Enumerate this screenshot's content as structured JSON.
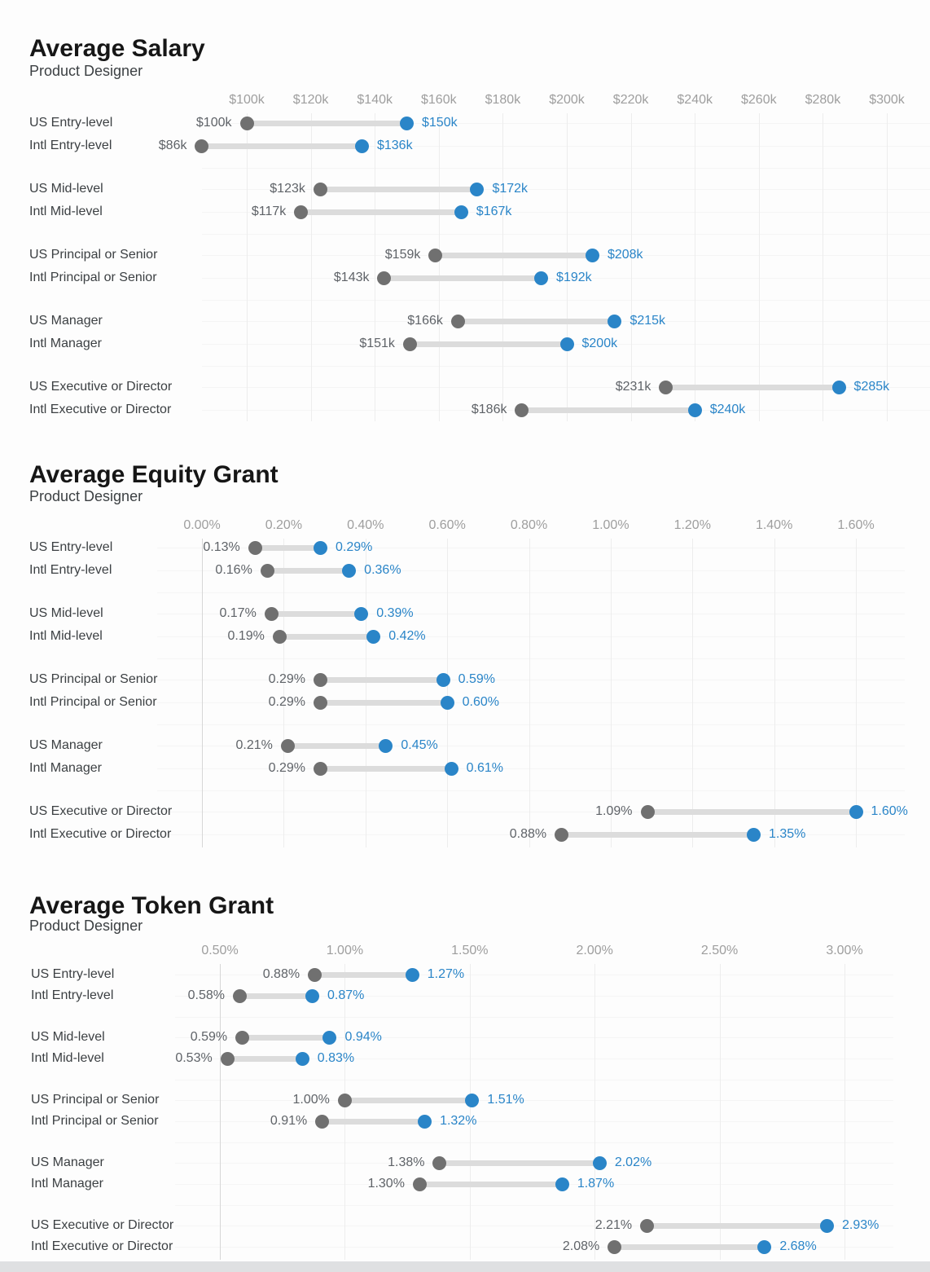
{
  "report": {
    "role": "Product Designer"
  },
  "colors": {
    "accent_blue": "#2a85c8",
    "dot_gray": "#707070",
    "bar_gray": "#dcdcdc",
    "axis_text": "#9e9e9e",
    "label_text": "#3c4043",
    "min_value_text": "#5f6368",
    "title_text": "#161616"
  },
  "chart_data": [
    {
      "type": "dumbbell",
      "title": "Average Salary",
      "subtitle": "Product Designer",
      "xlabel": "",
      "ylabel": "",
      "legend": "none",
      "grid": "on",
      "axis": {
        "ticks": [
          "$100k",
          "$120k",
          "$140k",
          "$160k",
          "$180k",
          "$200k",
          "$220k",
          "$240k",
          "$260k",
          "$280k",
          "$300k"
        ],
        "tick_values": [
          100,
          120,
          140,
          160,
          180,
          200,
          220,
          240,
          260,
          280,
          300
        ],
        "range": [
          100,
          300
        ],
        "unit": "USD thousands"
      },
      "rows": [
        {
          "label": "US Entry-level",
          "min": 100,
          "max": 150,
          "min_label": "$100k",
          "max_label": "$150k"
        },
        {
          "label": "Intl Entry-level",
          "min": 86,
          "max": 136,
          "min_label": "$86k",
          "max_label": "$136k"
        },
        {
          "label": "US Mid-level",
          "min": 123,
          "max": 172,
          "min_label": "$123k",
          "max_label": "$172k"
        },
        {
          "label": "Intl Mid-level",
          "min": 117,
          "max": 167,
          "min_label": "$117k",
          "max_label": "$167k"
        },
        {
          "label": "US Principal or Senior",
          "min": 159,
          "max": 208,
          "min_label": "$159k",
          "max_label": "$208k"
        },
        {
          "label": "Intl Principal or Senior",
          "min": 143,
          "max": 192,
          "min_label": "$143k",
          "max_label": "$192k"
        },
        {
          "label": "US Manager",
          "min": 166,
          "max": 215,
          "min_label": "$166k",
          "max_label": "$215k"
        },
        {
          "label": "Intl Manager",
          "min": 151,
          "max": 200,
          "min_label": "$151k",
          "max_label": "$200k"
        },
        {
          "label": "US Executive or Director",
          "min": 231,
          "max": 285,
          "min_label": "$231k",
          "max_label": "$285k"
        },
        {
          "label": "Intl Executive or Director",
          "min": 186,
          "max": 240,
          "min_label": "$186k",
          "max_label": "$240k"
        }
      ]
    },
    {
      "type": "dumbbell",
      "title": "Average Equity Grant",
      "subtitle": "Product Designer",
      "xlabel": "",
      "ylabel": "",
      "legend": "none",
      "grid": "on",
      "axis": {
        "ticks": [
          "0.00%",
          "0.20%",
          "0.40%",
          "0.60%",
          "0.80%",
          "1.00%",
          "1.20%",
          "1.40%",
          "1.60%"
        ],
        "tick_values": [
          0.0,
          0.2,
          0.4,
          0.6,
          0.8,
          1.0,
          1.2,
          1.4,
          1.6
        ],
        "range": [
          0.0,
          1.6
        ],
        "unit": "percent"
      },
      "rows": [
        {
          "label": "US Entry-level",
          "min": 0.13,
          "max": 0.29,
          "min_label": "0.13%",
          "max_label": "0.29%"
        },
        {
          "label": "Intl Entry-level",
          "min": 0.16,
          "max": 0.36,
          "min_label": "0.16%",
          "max_label": "0.36%"
        },
        {
          "label": "US Mid-level",
          "min": 0.17,
          "max": 0.39,
          "min_label": "0.17%",
          "max_label": "0.39%"
        },
        {
          "label": "Intl Mid-level",
          "min": 0.19,
          "max": 0.42,
          "min_label": "0.19%",
          "max_label": "0.42%"
        },
        {
          "label": "US Principal or Senior",
          "min": 0.29,
          "max": 0.59,
          "min_label": "0.29%",
          "max_label": "0.59%"
        },
        {
          "label": "Intl Principal or Senior",
          "min": 0.29,
          "max": 0.6,
          "min_label": "0.29%",
          "max_label": "0.60%"
        },
        {
          "label": "US Manager",
          "min": 0.21,
          "max": 0.45,
          "min_label": "0.21%",
          "max_label": "0.45%"
        },
        {
          "label": "Intl Manager",
          "min": 0.29,
          "max": 0.61,
          "min_label": "0.29%",
          "max_label": "0.61%"
        },
        {
          "label": "US Executive or Director",
          "min": 1.09,
          "max": 1.6,
          "min_label": "1.09%",
          "max_label": "1.60%"
        },
        {
          "label": "Intl Executive or Director",
          "min": 0.88,
          "max": 1.35,
          "min_label": "0.88%",
          "max_label": "1.35%"
        }
      ]
    },
    {
      "type": "dumbbell",
      "title": "Average Token Grant",
      "subtitle": "Product Designer",
      "xlabel": "",
      "ylabel": "",
      "legend": "none",
      "grid": "on",
      "axis": {
        "ticks": [
          "0.50%",
          "1.00%",
          "1.50%",
          "2.00%",
          "2.50%",
          "3.00%"
        ],
        "tick_values": [
          0.5,
          1.0,
          1.5,
          2.0,
          2.5,
          3.0
        ],
        "range": [
          0.5,
          3.0
        ],
        "unit": "percent"
      },
      "rows": [
        {
          "label": "US Entry-level",
          "min": 0.88,
          "max": 1.27,
          "min_label": "0.88%",
          "max_label": "1.27%"
        },
        {
          "label": "Intl Entry-level",
          "min": 0.58,
          "max": 0.87,
          "min_label": "0.58%",
          "max_label": "0.87%"
        },
        {
          "label": "US Mid-level",
          "min": 0.59,
          "max": 0.94,
          "min_label": "0.59%",
          "max_label": "0.94%"
        },
        {
          "label": "Intl Mid-level",
          "min": 0.53,
          "max": 0.83,
          "min_label": "0.53%",
          "max_label": "0.83%"
        },
        {
          "label": "US Principal or Senior",
          "min": 1.0,
          "max": 1.51,
          "min_label": "1.00%",
          "max_label": "1.51%"
        },
        {
          "label": "Intl Principal or Senior",
          "min": 0.91,
          "max": 1.32,
          "min_label": "0.91%",
          "max_label": "1.32%"
        },
        {
          "label": "US Manager",
          "min": 1.38,
          "max": 2.02,
          "min_label": "1.38%",
          "max_label": "2.02%"
        },
        {
          "label": "Intl Manager",
          "min": 1.3,
          "max": 1.87,
          "min_label": "1.30%",
          "max_label": "1.87%"
        },
        {
          "label": "US Executive or Director",
          "min": 2.21,
          "max": 2.93,
          "min_label": "2.21%",
          "max_label": "2.93%"
        },
        {
          "label": "Intl Executive or Director",
          "min": 2.08,
          "max": 2.68,
          "min_label": "2.08%",
          "max_label": "2.68%"
        }
      ]
    }
  ]
}
